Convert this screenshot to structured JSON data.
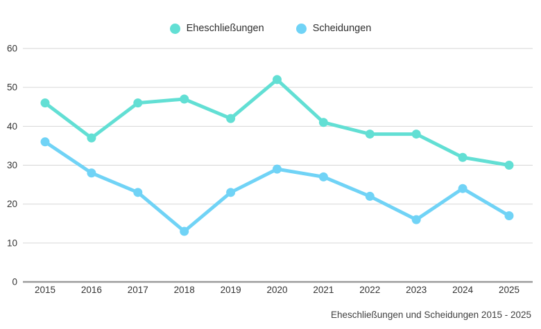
{
  "legend": {
    "items": [
      {
        "label": "Eheschließungen",
        "color": "#62DFD4"
      },
      {
        "label": "Scheidungen",
        "color": "#70D3F6"
      }
    ]
  },
  "caption": "Eheschließungen und Scheidungen 2015 - 2025",
  "colors": {
    "grid": "#D6D6D6",
    "axis": "#9B9B9B",
    "text": "#333333",
    "background": "#FFFFFF"
  },
  "chart_data": {
    "type": "line",
    "title": "",
    "xlabel": "",
    "ylabel": "",
    "categories": [
      "2015",
      "2016",
      "2017",
      "2018",
      "2019",
      "2020",
      "2021",
      "2022",
      "2023",
      "2024",
      "2025"
    ],
    "series": [
      {
        "name": "Eheschließungen",
        "color": "#62DFD4",
        "values": [
          46,
          37,
          46,
          47,
          42,
          52,
          41,
          38,
          38,
          32,
          30
        ]
      },
      {
        "name": "Scheidungen",
        "color": "#70D3F6",
        "values": [
          36,
          28,
          23,
          13,
          23,
          29,
          27,
          22,
          16,
          24,
          17
        ]
      }
    ],
    "ylim": [
      0,
      60
    ],
    "yticks": [
      0,
      10,
      20,
      30,
      40,
      50,
      60
    ],
    "grid": true,
    "legend_position": "top",
    "caption": "Eheschließungen und Scheidungen 2015 - 2025"
  }
}
